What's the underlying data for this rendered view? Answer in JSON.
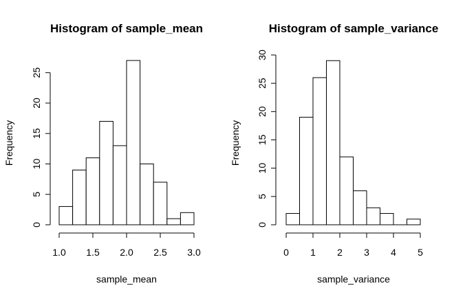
{
  "chart_data": [
    {
      "type": "bar",
      "title": "Histogram of sample_mean",
      "xlabel": "sample_mean",
      "ylabel": "Frequency",
      "bin_edges": [
        1.0,
        1.2,
        1.4,
        1.6,
        1.8,
        2.0,
        2.2,
        2.4,
        2.6,
        2.8,
        3.0
      ],
      "values": [
        3,
        9,
        11,
        17,
        13,
        27,
        10,
        7,
        1,
        2
      ],
      "x_ticks": [
        "1.0",
        "1.5",
        "2.0",
        "2.5",
        "3.0"
      ],
      "y_ticks": [
        "0",
        "5",
        "10",
        "15",
        "20",
        "25"
      ],
      "xlim": [
        1.0,
        3.0
      ],
      "ylim": [
        0,
        27
      ]
    },
    {
      "type": "bar",
      "title": "Histogram of sample_variance",
      "xlabel": "sample_variance",
      "ylabel": "Frequency",
      "bin_edges": [
        0,
        0.5,
        1.0,
        1.5,
        2.0,
        2.5,
        3.0,
        3.5,
        4.0,
        4.5,
        5.0
      ],
      "values": [
        2,
        19,
        26,
        29,
        12,
        6,
        3,
        2,
        0,
        1
      ],
      "x_ticks": [
        "0",
        "1",
        "2",
        "3",
        "4",
        "5"
      ],
      "y_ticks": [
        "0",
        "5",
        "10",
        "15",
        "20",
        "25",
        "30"
      ],
      "xlim": [
        0,
        5
      ],
      "ylim": [
        0,
        30
      ]
    }
  ]
}
